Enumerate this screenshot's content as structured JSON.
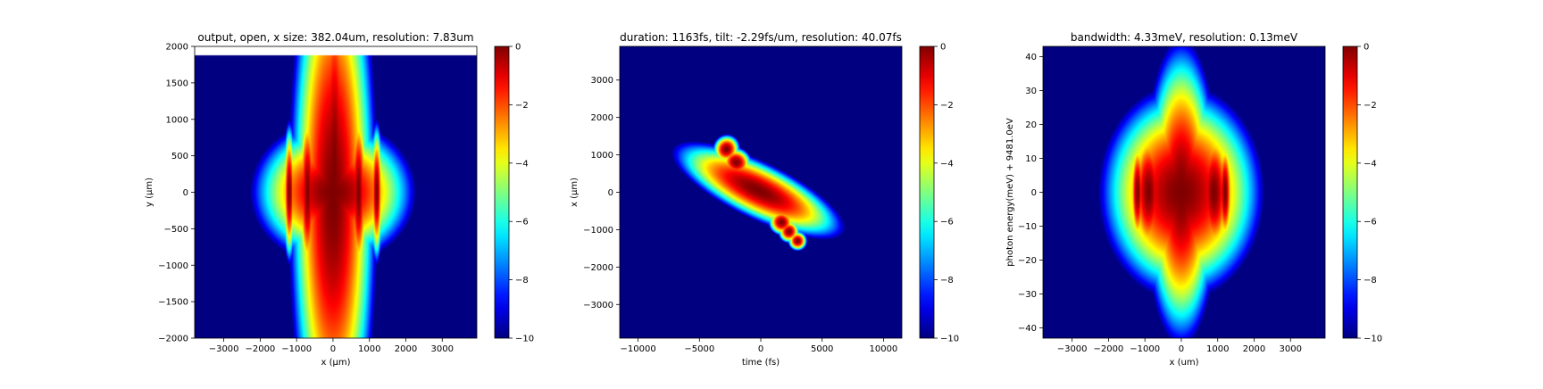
{
  "chart_data": [
    {
      "type": "heatmap",
      "title": "output, open, x size: 382.04um, resolution: 7.83um",
      "xlabel": "x (µm)",
      "ylabel": "y (µm)",
      "xlim": [
        -3800,
        3950
      ],
      "ylim": [
        -2000,
        2000
      ],
      "xticks": [
        -3000,
        -2000,
        -1000,
        0,
        1000,
        2000,
        3000
      ],
      "yticks": [
        -2000,
        -1500,
        -1000,
        -500,
        0,
        500,
        1000,
        1500,
        2000
      ],
      "xtick_labels": [
        "−3000",
        "−2000",
        "−1000",
        "0",
        "1000",
        "2000",
        "3000"
      ],
      "ytick_labels": [
        "−2000",
        "−1500",
        "−1000",
        "−500",
        "0",
        "500",
        "1000",
        "1500",
        "2000"
      ],
      "data_top": 1880,
      "colormap": "jet",
      "colorbar": {
        "range": [
          -10,
          0
        ],
        "ticks": [
          0,
          -2,
          -4,
          -6,
          -8,
          -10
        ],
        "tick_labels": [
          "0",
          "−2",
          "−4",
          "−6",
          "−8",
          "−10"
        ]
      },
      "blobs": [
        {
          "cx": 0,
          "cy": -100,
          "sx": 270,
          "sy": 900,
          "rot": 0
        },
        {
          "cx": 40,
          "cy": 300,
          "sx": 110,
          "sy": 800,
          "rot": 0
        },
        {
          "cx": 0,
          "cy": 0,
          "sx": 500,
          "sy": 220,
          "rot": 0
        },
        {
          "cx": -700,
          "cy": 0,
          "sx": 60,
          "sy": 300,
          "rot": 0
        },
        {
          "cx": 700,
          "cy": 0,
          "sx": 60,
          "sy": 300,
          "rot": 0
        },
        {
          "cx": -1200,
          "cy": 0,
          "sx": 40,
          "sy": 220,
          "rot": 0
        },
        {
          "cx": 1200,
          "cy": 0,
          "sx": 40,
          "sy": 220,
          "rot": 0
        }
      ]
    },
    {
      "type": "heatmap",
      "title": "duration: 1163fs, tilt: -2.29fs/um, resolution: 40.07fs",
      "xlabel": "time (fs)",
      "ylabel": "x (µm)",
      "xlim": [
        -11500,
        11500
      ],
      "ylim": [
        -3900,
        3900
      ],
      "xticks": [
        -10000,
        -5000,
        0,
        5000,
        10000
      ],
      "yticks": [
        -3000,
        -2000,
        -1000,
        0,
        1000,
        2000,
        3000
      ],
      "xtick_labels": [
        "−10000",
        "−5000",
        "0",
        "5000",
        "10000"
      ],
      "ytick_labels": [
        "−3000",
        "−2000",
        "−1000",
        "0",
        "1000",
        "2000",
        "3000"
      ],
      "colormap": "jet",
      "colorbar": {
        "range": [
          -10,
          0
        ],
        "ticks": [
          0,
          -2,
          -4,
          -6,
          -8,
          -10
        ],
        "tick_labels": [
          "0",
          "−2",
          "−4",
          "−6",
          "−8",
          "−10"
        ]
      },
      "blobs": [
        {
          "cx": -200,
          "cy": 50,
          "sx": 1700,
          "sy": 170,
          "rot": -25
        },
        {
          "cx": -2800,
          "cy": 1150,
          "sx": 250,
          "sy": 90,
          "rot": -25
        },
        {
          "cx": -2000,
          "cy": 800,
          "sx": 300,
          "sy": 90,
          "rot": -25
        },
        {
          "cx": 1700,
          "cy": -800,
          "sx": 250,
          "sy": 80,
          "rot": -25
        },
        {
          "cx": 2300,
          "cy": -1050,
          "sx": 200,
          "sy": 70,
          "rot": -25
        },
        {
          "cx": 3000,
          "cy": -1300,
          "sx": 180,
          "sy": 60,
          "rot": -25
        }
      ]
    },
    {
      "type": "heatmap",
      "title": "bandwidth: 4.33meV, resolution: 0.13meV",
      "xlabel": "x (um)",
      "ylabel": "photon energy(meV) + 9481.0eV",
      "xlim": [
        -3800,
        3950
      ],
      "ylim": [
        -43,
        43
      ],
      "xticks": [
        -3000,
        -2000,
        -1000,
        0,
        1000,
        2000,
        3000
      ],
      "yticks": [
        -40,
        -30,
        -20,
        -10,
        0,
        10,
        20,
        30,
        40
      ],
      "xtick_labels": [
        "−3000",
        "−2000",
        "−1000",
        "0",
        "1000",
        "2000",
        "3000"
      ],
      "ytick_labels": [
        "−40",
        "−30",
        "−20",
        "−10",
        "0",
        "10",
        "20",
        "30",
        "40"
      ],
      "colormap": "jet",
      "colorbar": {
        "range": [
          -10,
          0
        ],
        "ticks": [
          0,
          -2,
          -4,
          -6,
          -8,
          -10
        ],
        "tick_labels": [
          "0",
          "−2",
          "−4",
          "−6",
          "−8",
          "−10"
        ]
      },
      "blobs": [
        {
          "cx": 0,
          "cy": 0,
          "sx": 500,
          "sy": 7,
          "rot": 0
        },
        {
          "cx": 0,
          "cy": 0,
          "sx": 230,
          "sy": 10,
          "rot": 0
        },
        {
          "cx": -900,
          "cy": 0,
          "sx": 120,
          "sy": 5,
          "rot": 0
        },
        {
          "cx": 900,
          "cy": 0,
          "sx": 120,
          "sy": 5,
          "rot": 0
        },
        {
          "cx": -1200,
          "cy": 0,
          "sx": 50,
          "sy": 4,
          "rot": 0
        },
        {
          "cx": 1200,
          "cy": 0,
          "sx": 50,
          "sy": 4,
          "rot": 0
        }
      ]
    }
  ]
}
